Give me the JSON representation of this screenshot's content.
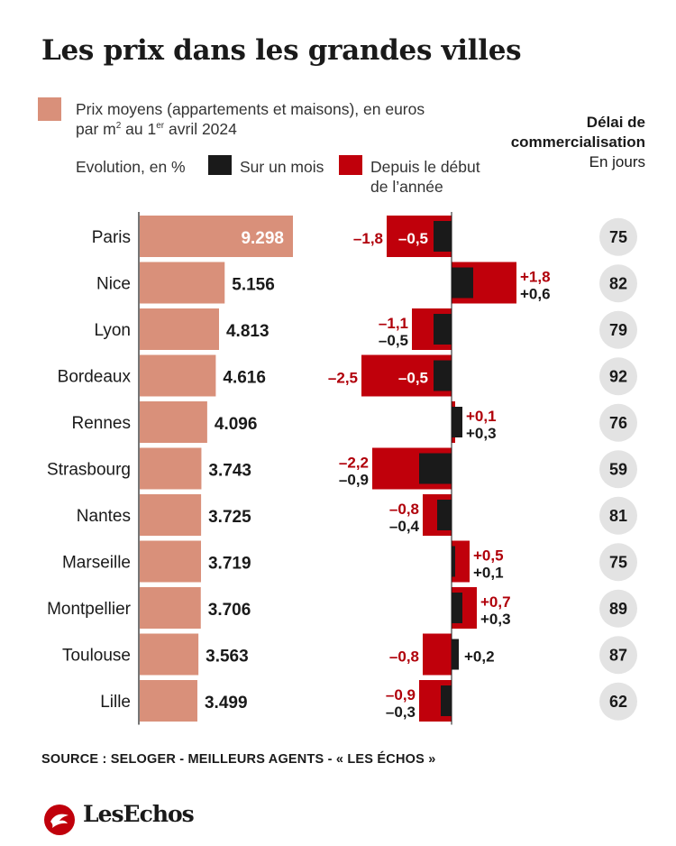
{
  "title": "Les prix dans les grandes villes",
  "legend": {
    "price_line1": "Prix moyens (appartements et maisons), en euros",
    "price_line2_a": "par m",
    "price_line2_sup1": "2",
    "price_line2_b": " au 1",
    "price_line2_sup2": "er",
    "price_line2_c": " avril 2024",
    "evolution_label": "Evolution, en %",
    "month_label": "Sur un mois",
    "year_label_line1": "Depuis le début",
    "year_label_line2": "de l’année"
  },
  "delay_header": {
    "line1": "Délai de",
    "line2": "commercialisation",
    "line3": "En jours"
  },
  "colors": {
    "price_bar": "#d9907a",
    "month_bar": "#1a1a1a",
    "year_bar": "#c0000b",
    "year_text": "#b0000a",
    "badge": "#e3e3e3"
  },
  "chart_data": {
    "type": "bar",
    "categories": [
      "Paris",
      "Nice",
      "Lyon",
      "Bordeaux",
      "Rennes",
      "Strasbourg",
      "Nantes",
      "Marseille",
      "Montpellier",
      "Toulouse",
      "Lille"
    ],
    "series": [
      {
        "name": "Prix moyens (appartements et maisons), en euros par m2 au 1er avril 2024",
        "values": [
          9298,
          5156,
          4813,
          4616,
          4096,
          3743,
          3725,
          3719,
          3706,
          3563,
          3499
        ],
        "labels": [
          "9.298",
          "5.156",
          "4.813",
          "4.616",
          "4.096",
          "3.743",
          "3.725",
          "3.719",
          "3.706",
          "3.563",
          "3.499"
        ]
      },
      {
        "name": "Sur un mois",
        "values": [
          -0.5,
          0.6,
          -0.5,
          -0.5,
          0.3,
          -0.9,
          -0.4,
          0.1,
          0.3,
          0.2,
          -0.3
        ],
        "labels": [
          "–0,5",
          "+0,6",
          "–0,5",
          "–0,5",
          "+0,3",
          "–0,9",
          "–0,4",
          "+0,1",
          "+0,3",
          "+0,2",
          "–0,3"
        ]
      },
      {
        "name": "Depuis le début de l’année",
        "values": [
          -1.8,
          1.8,
          -1.1,
          -2.5,
          0.1,
          -2.2,
          -0.8,
          0.5,
          0.7,
          -0.8,
          -0.9
        ],
        "labels": [
          "–1,8",
          "+1,8",
          "–1,1",
          "–2,5",
          "+0,1",
          "–2,2",
          "–0,8",
          "+0,5",
          "+0,7",
          "–0,8",
          "–0,9"
        ]
      },
      {
        "name": "Délai de commercialisation",
        "values": [
          75,
          82,
          79,
          92,
          76,
          59,
          81,
          75,
          89,
          87,
          62
        ],
        "labels": [
          "75",
          "82",
          "79",
          "92",
          "76",
          "59",
          "81",
          "75",
          "89",
          "87",
          "62"
        ]
      }
    ]
  },
  "source": "SOURCE : SELOGER - MEILLEURS AGENTS - « LES ÉCHOS »",
  "logo": "LesEchos"
}
